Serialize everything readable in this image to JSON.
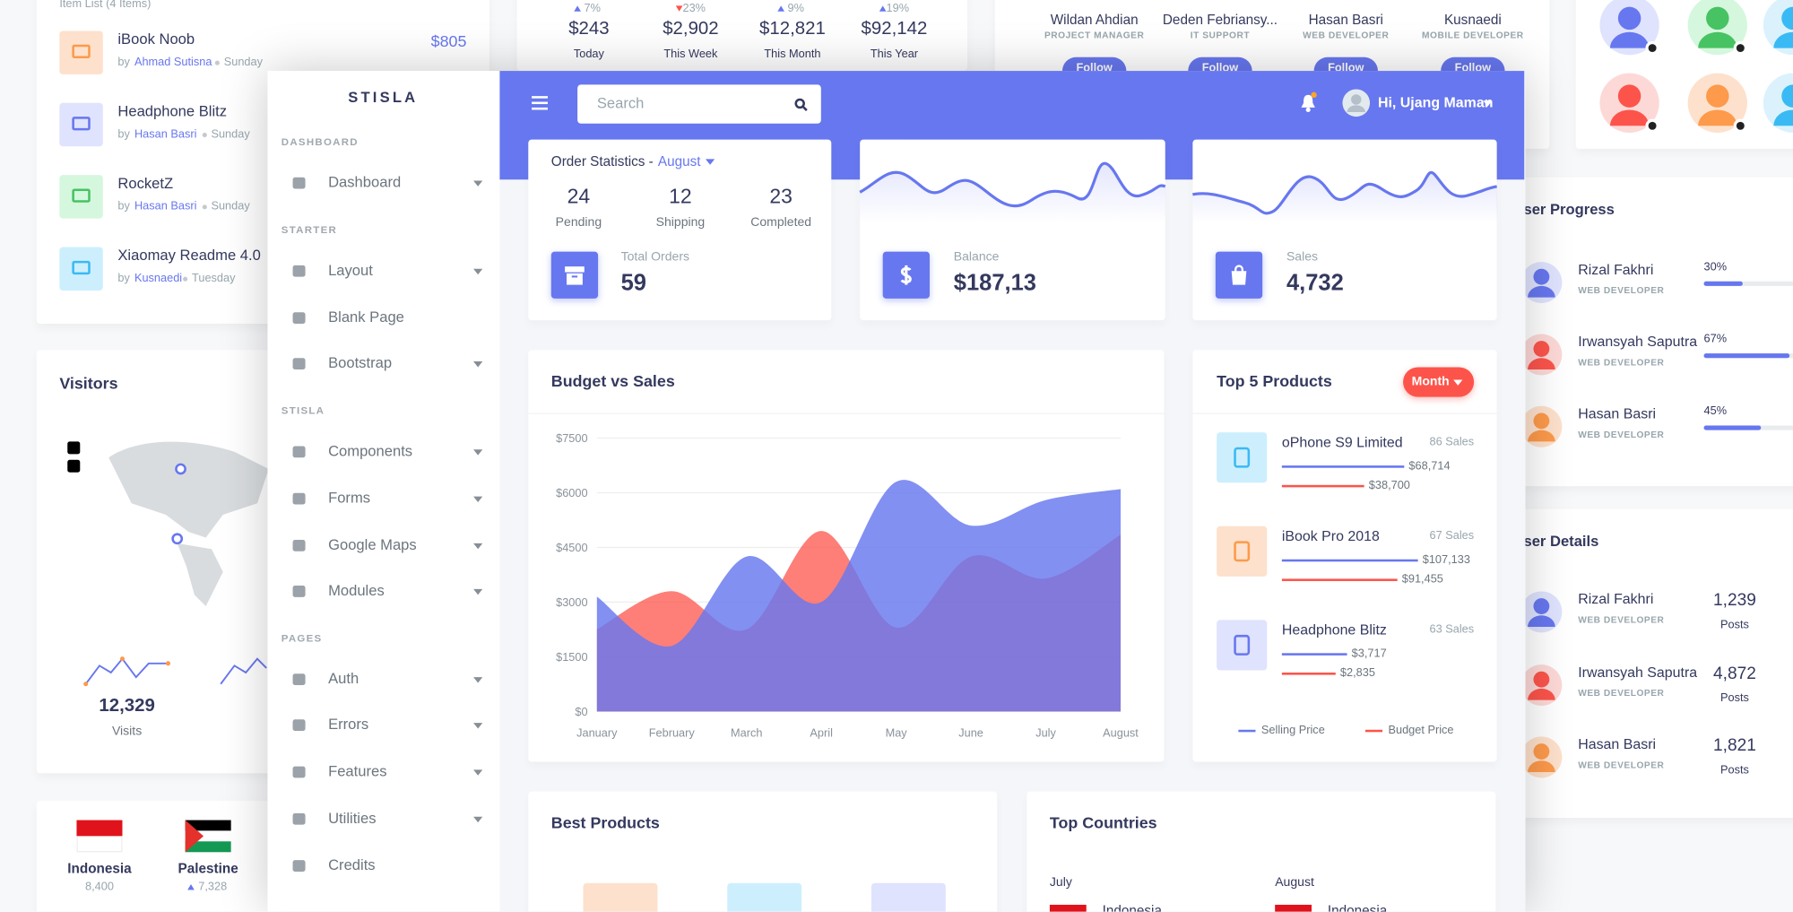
{
  "background": {
    "item_list": {
      "title": "Item List (4 Items)",
      "items": [
        {
          "name": "iBook Noob",
          "by": "by",
          "author": "Ahmad Sutisna",
          "day": "Sunday",
          "price": "$805"
        },
        {
          "name": "Headphone Blitz",
          "by": "by",
          "author": "Hasan Basri",
          "day": "Sunday"
        },
        {
          "name": "RocketZ",
          "by": "by",
          "author": "Hasan Basri",
          "day": "Sunday"
        },
        {
          "name": "Xiaomay Readme 4.0",
          "by": "by",
          "author": "Kusnaedi",
          "day": "Tuesday"
        }
      ]
    },
    "visitors": {
      "title": "Visitors",
      "stat": "12,329",
      "stat_label": "Visits"
    },
    "countries": [
      {
        "name": "Indonesia",
        "value": "8,400"
      },
      {
        "name": "Palestine",
        "value": "7,328",
        "trend": "up"
      }
    ],
    "summary": [
      {
        "change": "7%",
        "direction": "up",
        "amount": "$243",
        "period": "Today"
      },
      {
        "change": "23%",
        "direction": "down",
        "amount": "$2,902",
        "period": "This Week"
      },
      {
        "change": "9%",
        "direction": "up",
        "amount": "$12,821",
        "period": "This Month"
      },
      {
        "change": "19%",
        "direction": "up",
        "amount": "$92,142",
        "period": "This Year"
      }
    ],
    "team": [
      {
        "name": "Wildan Ahdian",
        "role": "PROJECT MANAGER",
        "button": "Follow"
      },
      {
        "name": "Deden Febriansy...",
        "role": "IT SUPPORT",
        "button": "Follow"
      },
      {
        "name": "Hasan Basri",
        "role": "WEB DEVELOPER",
        "button": "Follow"
      },
      {
        "name": "Kusnaedi",
        "role": "MOBILE DEVELOPER",
        "button": "Follow"
      }
    ],
    "user_progress": {
      "title": "User Progress",
      "users": [
        {
          "name": "Rizal Fakhri",
          "role": "WEB DEVELOPER",
          "percent": "30%"
        },
        {
          "name": "Irwansyah Saputra",
          "role": "WEB DEVELOPER",
          "percent": "67%"
        },
        {
          "name": "Hasan Basri",
          "role": "WEB DEVELOPER",
          "percent": "45%"
        }
      ]
    },
    "user_details": {
      "title": "User Details",
      "users": [
        {
          "name": "Rizal Fakhri",
          "role": "WEB DEVELOPER",
          "posts": "1,239",
          "posts_label": "Posts"
        },
        {
          "name": "Irwansyah Saputra",
          "role": "WEB DEVELOPER",
          "posts": "4,872",
          "posts_label": "Posts"
        },
        {
          "name": "Hasan Basri",
          "role": "WEB DEVELOPER",
          "posts": "1,821",
          "posts_label": "Posts"
        }
      ]
    }
  },
  "sidebar": {
    "brand": "STISLA",
    "sections": [
      {
        "header": "DASHBOARD",
        "items": [
          {
            "label": "Dashboard",
            "dropdown": true
          }
        ]
      },
      {
        "header": "STARTER",
        "items": [
          {
            "label": "Layout",
            "dropdown": true
          },
          {
            "label": "Blank Page",
            "dropdown": false
          },
          {
            "label": "Bootstrap",
            "dropdown": true
          }
        ]
      },
      {
        "header": "STISLA",
        "items": [
          {
            "label": "Components",
            "dropdown": true
          },
          {
            "label": "Forms",
            "dropdown": true
          },
          {
            "label": "Google Maps",
            "dropdown": true
          },
          {
            "label": "Modules",
            "dropdown": true
          }
        ]
      },
      {
        "header": "PAGES",
        "items": [
          {
            "label": "Auth",
            "dropdown": true
          },
          {
            "label": "Errors",
            "dropdown": true
          },
          {
            "label": "Features",
            "dropdown": true
          },
          {
            "label": "Utilities",
            "dropdown": true
          },
          {
            "label": "Credits",
            "dropdown": false
          }
        ]
      }
    ]
  },
  "navbar": {
    "search_placeholder": "Search",
    "user": "Hi, Ujang Maman"
  },
  "order_statistics": {
    "title": "Order Statistics -",
    "month": "August",
    "stats": [
      {
        "value": "24",
        "label": "Pending"
      },
      {
        "value": "12",
        "label": "Shipping"
      },
      {
        "value": "23",
        "label": "Completed"
      }
    ],
    "total_label": "Total Orders",
    "total": "59"
  },
  "balance": {
    "label": "Balance",
    "value": "$187,13"
  },
  "sales": {
    "label": "Sales",
    "value": "4,732"
  },
  "chart_data": {
    "type": "area",
    "title": "Budget vs Sales",
    "categories": [
      "January",
      "February",
      "March",
      "April",
      "May",
      "June",
      "July",
      "August"
    ],
    "series": [
      {
        "color": "#fc544b",
        "values": [
          2250,
          3300,
          2250,
          4950,
          2300,
          4250,
          3650,
          4850
        ]
      },
      {
        "color": "#6777ef",
        "values": [
          3150,
          1800,
          4250,
          3000,
          6300,
          5100,
          5800,
          6100
        ]
      }
    ],
    "ylim": [
      0,
      7500
    ],
    "yticks": [
      {
        "value": 0,
        "label": "$0"
      },
      {
        "value": 1500,
        "label": "$1500"
      },
      {
        "value": 3000,
        "label": "$3000"
      },
      {
        "value": 4500,
        "label": "$4500"
      },
      {
        "value": 6000,
        "label": "$6000"
      },
      {
        "value": 7500,
        "label": "$7500"
      }
    ],
    "grid": true
  },
  "top_products": {
    "title": "Top 5 Products",
    "button": "Month",
    "products": [
      {
        "name": "oPhone S9 Limited",
        "sales": "86 Sales",
        "selling": "$68,714",
        "budget": "$38,700"
      },
      {
        "name": "iBook Pro 2018",
        "sales": "67 Sales",
        "selling": "$107,133",
        "budget": "$91,455"
      },
      {
        "name": "Headphone Blitz",
        "sales": "63 Sales",
        "selling": "$3,717",
        "budget": "$2,835"
      }
    ],
    "legend": [
      "Selling Price",
      "Budget Price"
    ]
  },
  "best_products": {
    "title": "Best Products"
  },
  "top_countries": {
    "title": "Top Countries",
    "columns": [
      {
        "month": "July",
        "country": "Indonesia"
      },
      {
        "month": "August",
        "country": "Indonesia"
      }
    ]
  }
}
